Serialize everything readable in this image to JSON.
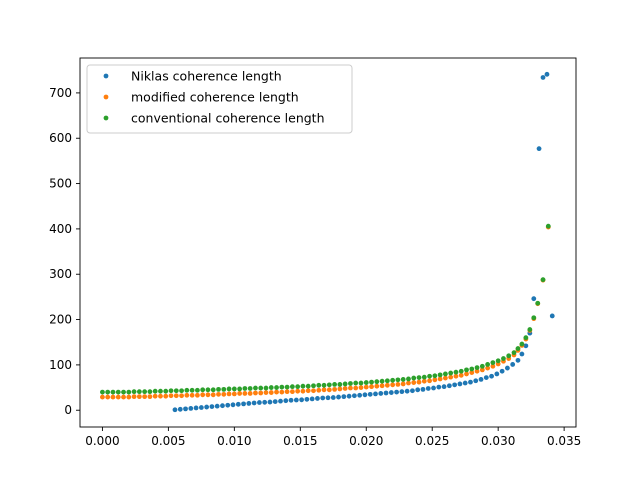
{
  "chart_data": {
    "type": "scatter",
    "title": "",
    "xlabel": "",
    "ylabel": "",
    "xlim": [
      -0.0017,
      0.0359
    ],
    "ylim": [
      -37,
      777
    ],
    "x_ticks": [
      0.0,
      0.005,
      0.01,
      0.015,
      0.02,
      0.025,
      0.03,
      0.035
    ],
    "x_tick_labels": [
      "0.000",
      "0.005",
      "0.010",
      "0.015",
      "0.020",
      "0.025",
      "0.030",
      "0.035"
    ],
    "y_ticks": [
      0,
      100,
      200,
      300,
      400,
      500,
      600,
      700
    ],
    "y_tick_labels": [
      "0",
      "100",
      "200",
      "300",
      "400",
      "500",
      "600",
      "700"
    ],
    "grid": false,
    "legend_position": "top-left",
    "series": [
      {
        "name": "Niklas coherence length",
        "color": "#1f77b4",
        "points": [
          [
            0.0055,
            1
          ],
          [
            0.0059,
            2
          ],
          [
            0.0063,
            3
          ],
          [
            0.0067,
            4
          ],
          [
            0.0071,
            5
          ],
          [
            0.0075,
            6
          ],
          [
            0.0079,
            7
          ],
          [
            0.0083,
            8
          ],
          [
            0.0087,
            9
          ],
          [
            0.0091,
            10
          ],
          [
            0.0095,
            11
          ],
          [
            0.0099,
            12
          ],
          [
            0.0103,
            13
          ],
          [
            0.0107,
            14
          ],
          [
            0.0111,
            15
          ],
          [
            0.0115,
            16
          ],
          [
            0.0119,
            17
          ],
          [
            0.0123,
            17.5
          ],
          [
            0.0127,
            18
          ],
          [
            0.0131,
            19
          ],
          [
            0.0135,
            20
          ],
          [
            0.0139,
            21
          ],
          [
            0.0143,
            22
          ],
          [
            0.0147,
            22.5
          ],
          [
            0.0151,
            23
          ],
          [
            0.0155,
            24
          ],
          [
            0.0159,
            25
          ],
          [
            0.0163,
            26
          ],
          [
            0.0167,
            27
          ],
          [
            0.0171,
            27.5
          ],
          [
            0.0175,
            28
          ],
          [
            0.0179,
            29
          ],
          [
            0.0183,
            30
          ],
          [
            0.0187,
            31
          ],
          [
            0.0191,
            32
          ],
          [
            0.0195,
            33
          ],
          [
            0.0199,
            34
          ],
          [
            0.0203,
            35
          ],
          [
            0.0207,
            36
          ],
          [
            0.0211,
            37
          ],
          [
            0.0215,
            38
          ],
          [
            0.0219,
            39
          ],
          [
            0.0223,
            40
          ],
          [
            0.0227,
            41
          ],
          [
            0.0231,
            42
          ],
          [
            0.0235,
            43
          ],
          [
            0.0239,
            45
          ],
          [
            0.0243,
            46
          ],
          [
            0.0247,
            48
          ],
          [
            0.0251,
            49
          ],
          [
            0.0255,
            51
          ],
          [
            0.0259,
            52
          ],
          [
            0.0263,
            54
          ],
          [
            0.0267,
            56
          ],
          [
            0.0271,
            58
          ],
          [
            0.0275,
            60
          ],
          [
            0.0279,
            62
          ],
          [
            0.0283,
            65
          ],
          [
            0.0287,
            68
          ],
          [
            0.0291,
            72
          ],
          [
            0.0295,
            75
          ],
          [
            0.0299,
            80
          ],
          [
            0.0303,
            86
          ],
          [
            0.0307,
            93
          ],
          [
            0.0311,
            101
          ],
          [
            0.0315,
            110
          ],
          [
            0.0318,
            124
          ],
          [
            0.0321,
            142
          ],
          [
            0.0324,
            170
          ],
          [
            0.0327,
            246
          ],
          [
            0.0331,
            577
          ],
          [
            0.0334,
            734
          ],
          [
            0.0337,
            741
          ],
          [
            0.0341,
            208
          ]
        ]
      },
      {
        "name": "modified coherence length",
        "color": "#ff7f0e",
        "points": [
          [
            0.0,
            29
          ],
          [
            0.0004,
            29
          ],
          [
            0.0008,
            29
          ],
          [
            0.0012,
            29
          ],
          [
            0.0016,
            29
          ],
          [
            0.002,
            29
          ],
          [
            0.0024,
            30
          ],
          [
            0.0028,
            30
          ],
          [
            0.0032,
            30
          ],
          [
            0.0036,
            30
          ],
          [
            0.004,
            31
          ],
          [
            0.0044,
            31
          ],
          [
            0.0048,
            31
          ],
          [
            0.0052,
            32
          ],
          [
            0.0056,
            32
          ],
          [
            0.006,
            32
          ],
          [
            0.0064,
            33
          ],
          [
            0.0068,
            33
          ],
          [
            0.0072,
            33
          ],
          [
            0.0076,
            34
          ],
          [
            0.008,
            34
          ],
          [
            0.0084,
            34
          ],
          [
            0.0088,
            35
          ],
          [
            0.0092,
            35
          ],
          [
            0.0096,
            36
          ],
          [
            0.01,
            36
          ],
          [
            0.0104,
            37
          ],
          [
            0.0108,
            37
          ],
          [
            0.0112,
            37
          ],
          [
            0.0116,
            38
          ],
          [
            0.012,
            38
          ],
          [
            0.0124,
            39
          ],
          [
            0.0128,
            39
          ],
          [
            0.0132,
            40
          ],
          [
            0.0136,
            40
          ],
          [
            0.014,
            41
          ],
          [
            0.0144,
            41
          ],
          [
            0.0148,
            42
          ],
          [
            0.0152,
            42
          ],
          [
            0.0156,
            43
          ],
          [
            0.016,
            43
          ],
          [
            0.0164,
            44
          ],
          [
            0.0168,
            45
          ],
          [
            0.0172,
            45
          ],
          [
            0.0176,
            46
          ],
          [
            0.018,
            47
          ],
          [
            0.0184,
            48
          ],
          [
            0.0188,
            49
          ],
          [
            0.0192,
            49
          ],
          [
            0.0196,
            50
          ],
          [
            0.02,
            51
          ],
          [
            0.0204,
            52
          ],
          [
            0.0208,
            53
          ],
          [
            0.0212,
            54
          ],
          [
            0.0216,
            55
          ],
          [
            0.022,
            56
          ],
          [
            0.0224,
            57
          ],
          [
            0.0228,
            58
          ],
          [
            0.0232,
            60
          ],
          [
            0.0236,
            61
          ],
          [
            0.024,
            62
          ],
          [
            0.0244,
            64
          ],
          [
            0.0248,
            65
          ],
          [
            0.0252,
            67
          ],
          [
            0.0256,
            69
          ],
          [
            0.026,
            71
          ],
          [
            0.0264,
            73
          ],
          [
            0.0268,
            75
          ],
          [
            0.0272,
            77
          ],
          [
            0.0276,
            80
          ],
          [
            0.028,
            83
          ],
          [
            0.0284,
            86
          ],
          [
            0.0288,
            89
          ],
          [
            0.0292,
            93
          ],
          [
            0.0296,
            97
          ],
          [
            0.03,
            102
          ],
          [
            0.0304,
            108
          ],
          [
            0.0308,
            114
          ],
          [
            0.0312,
            122
          ],
          [
            0.0315,
            132
          ],
          [
            0.0318,
            143
          ],
          [
            0.0321,
            157
          ],
          [
            0.0324,
            176
          ],
          [
            0.0327,
            202
          ],
          [
            0.033,
            235
          ],
          [
            0.0334,
            287
          ],
          [
            0.0338,
            404
          ]
        ]
      },
      {
        "name": "conventional coherence length",
        "color": "#2ca02c",
        "points": [
          [
            0.0,
            40
          ],
          [
            0.0004,
            40
          ],
          [
            0.0008,
            40
          ],
          [
            0.0012,
            40
          ],
          [
            0.0016,
            40
          ],
          [
            0.002,
            40
          ],
          [
            0.0024,
            41
          ],
          [
            0.0028,
            41
          ],
          [
            0.0032,
            41
          ],
          [
            0.0036,
            41
          ],
          [
            0.004,
            42
          ],
          [
            0.0044,
            42
          ],
          [
            0.0048,
            42
          ],
          [
            0.0052,
            43
          ],
          [
            0.0056,
            43
          ],
          [
            0.006,
            43
          ],
          [
            0.0064,
            44
          ],
          [
            0.0068,
            44
          ],
          [
            0.0072,
            44
          ],
          [
            0.0076,
            45
          ],
          [
            0.008,
            45
          ],
          [
            0.0084,
            45
          ],
          [
            0.0088,
            46
          ],
          [
            0.0092,
            46
          ],
          [
            0.0096,
            47
          ],
          [
            0.01,
            47
          ],
          [
            0.0104,
            47
          ],
          [
            0.0108,
            48
          ],
          [
            0.0112,
            48
          ],
          [
            0.0116,
            49
          ],
          [
            0.012,
            49
          ],
          [
            0.0124,
            49
          ],
          [
            0.0128,
            50
          ],
          [
            0.0132,
            50
          ],
          [
            0.0136,
            51
          ],
          [
            0.014,
            51
          ],
          [
            0.0144,
            52
          ],
          [
            0.0148,
            52
          ],
          [
            0.0152,
            53
          ],
          [
            0.0156,
            53
          ],
          [
            0.016,
            54
          ],
          [
            0.0164,
            55
          ],
          [
            0.0168,
            55
          ],
          [
            0.0172,
            56
          ],
          [
            0.0176,
            57
          ],
          [
            0.018,
            57
          ],
          [
            0.0184,
            58
          ],
          [
            0.0188,
            59
          ],
          [
            0.0192,
            60
          ],
          [
            0.0196,
            60
          ],
          [
            0.02,
            61
          ],
          [
            0.0204,
            62
          ],
          [
            0.0208,
            63
          ],
          [
            0.0212,
            64
          ],
          [
            0.0216,
            65
          ],
          [
            0.022,
            66
          ],
          [
            0.0224,
            67
          ],
          [
            0.0228,
            68
          ],
          [
            0.0232,
            69
          ],
          [
            0.0236,
            71
          ],
          [
            0.024,
            72
          ],
          [
            0.0244,
            73
          ],
          [
            0.0248,
            75
          ],
          [
            0.0252,
            76
          ],
          [
            0.0256,
            78
          ],
          [
            0.026,
            80
          ],
          [
            0.0264,
            82
          ],
          [
            0.0268,
            84
          ],
          [
            0.0272,
            86
          ],
          [
            0.0276,
            89
          ],
          [
            0.028,
            91
          ],
          [
            0.0284,
            94
          ],
          [
            0.0288,
            97
          ],
          [
            0.0292,
            101
          ],
          [
            0.0296,
            105
          ],
          [
            0.03,
            109
          ],
          [
            0.0304,
            114
          ],
          [
            0.0308,
            120
          ],
          [
            0.0312,
            127
          ],
          [
            0.0315,
            136
          ],
          [
            0.0318,
            146
          ],
          [
            0.0321,
            160
          ],
          [
            0.0324,
            178
          ],
          [
            0.0327,
            204
          ],
          [
            0.033,
            236
          ],
          [
            0.0334,
            288
          ],
          [
            0.0338,
            406
          ]
        ]
      }
    ]
  }
}
